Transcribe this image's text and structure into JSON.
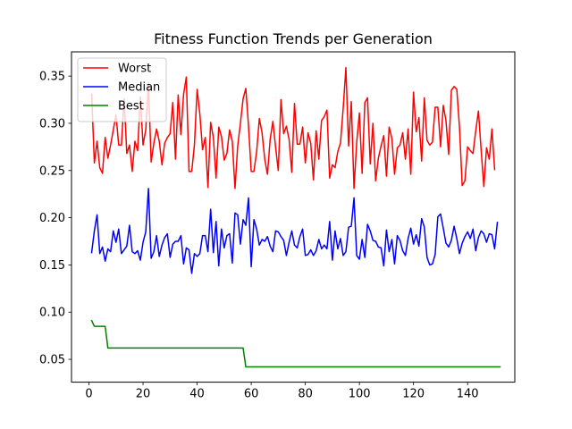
{
  "chart_data": {
    "type": "line",
    "title": "Fitness Function Trends per Generation",
    "xlabel": "",
    "ylabel": "",
    "xlim": [
      -6.45,
      157.45
    ],
    "ylim": [
      0.0258,
      0.3757
    ],
    "x_ticks": [
      0,
      20,
      40,
      60,
      80,
      100,
      120,
      140
    ],
    "y_ticks": [
      0.05,
      0.1,
      0.15,
      0.2,
      0.25,
      0.3,
      0.35
    ],
    "grid": false,
    "legend_position": "top-left",
    "x_start": 1,
    "series": [
      {
        "name": "Worst",
        "color": "#ff0000",
        "values": [
          0.331,
          0.258,
          0.281,
          0.253,
          0.247,
          0.285,
          0.263,
          0.277,
          0.293,
          0.309,
          0.277,
          0.277,
          0.326,
          0.268,
          0.277,
          0.249,
          0.281,
          0.271,
          0.328,
          0.277,
          0.293,
          0.343,
          0.259,
          0.279,
          0.294,
          0.281,
          0.256,
          0.279,
          0.285,
          0.289,
          0.322,
          0.262,
          0.33,
          0.288,
          0.331,
          0.349,
          0.249,
          0.249,
          0.277,
          0.336,
          0.31,
          0.272,
          0.285,
          0.232,
          0.301,
          0.285,
          0.242,
          0.296,
          0.286,
          0.261,
          0.268,
          0.293,
          0.281,
          0.231,
          0.276,
          0.3,
          0.326,
          0.337,
          0.297,
          0.249,
          0.249,
          0.27,
          0.305,
          0.29,
          0.262,
          0.246,
          0.283,
          0.302,
          0.275,
          0.25,
          0.325,
          0.289,
          0.297,
          0.283,
          0.248,
          0.321,
          0.278,
          0.278,
          0.296,
          0.258,
          0.29,
          0.279,
          0.24,
          0.292,
          0.262,
          0.303,
          0.307,
          0.314,
          0.242,
          0.256,
          0.253,
          0.27,
          0.279,
          0.316,
          0.359,
          0.276,
          0.323,
          0.231,
          0.28,
          0.311,
          0.247,
          0.322,
          0.327,
          0.257,
          0.3,
          0.239,
          0.263,
          0.276,
          0.287,
          0.244,
          0.296,
          0.284,
          0.246,
          0.274,
          0.277,
          0.29,
          0.262,
          0.294,
          0.246,
          0.333,
          0.291,
          0.306,
          0.26,
          0.327,
          0.282,
          0.277,
          0.28,
          0.317,
          0.317,
          0.275,
          0.319,
          0.303,
          0.267,
          0.335,
          0.339,
          0.336,
          0.296,
          0.234,
          0.239,
          0.275,
          0.271,
          0.268,
          0.292,
          0.313,
          0.272,
          0.233,
          0.274,
          0.262,
          0.294,
          0.251
        ]
      },
      {
        "name": "Median",
        "color": "#0000ff",
        "values": [
          0.163,
          0.186,
          0.203,
          0.162,
          0.169,
          0.154,
          0.167,
          0.164,
          0.186,
          0.174,
          0.188,
          0.162,
          0.166,
          0.17,
          0.192,
          0.164,
          0.162,
          0.165,
          0.155,
          0.174,
          0.185,
          0.231,
          0.157,
          0.164,
          0.181,
          0.159,
          0.171,
          0.179,
          0.183,
          0.158,
          0.172,
          0.175,
          0.175,
          0.181,
          0.151,
          0.168,
          0.166,
          0.141,
          0.162,
          0.159,
          0.162,
          0.181,
          0.181,
          0.164,
          0.209,
          0.163,
          0.196,
          0.149,
          0.188,
          0.168,
          0.181,
          0.183,
          0.152,
          0.205,
          0.203,
          0.172,
          0.198,
          0.192,
          0.221,
          0.148,
          0.198,
          0.188,
          0.171,
          0.177,
          0.175,
          0.18,
          0.17,
          0.164,
          0.186,
          0.185,
          0.18,
          0.176,
          0.16,
          0.174,
          0.186,
          0.171,
          0.168,
          0.18,
          0.188,
          0.16,
          0.161,
          0.166,
          0.16,
          0.165,
          0.177,
          0.167,
          0.171,
          0.167,
          0.196,
          0.155,
          0.186,
          0.167,
          0.178,
          0.16,
          0.164,
          0.19,
          0.191,
          0.221,
          0.16,
          0.156,
          0.177,
          0.158,
          0.193,
          0.186,
          0.176,
          0.175,
          0.169,
          0.168,
          0.149,
          0.187,
          0.164,
          0.177,
          0.151,
          0.181,
          0.176,
          0.165,
          0.16,
          0.178,
          0.189,
          0.172,
          0.182,
          0.17,
          0.199,
          0.19,
          0.158,
          0.15,
          0.151,
          0.161,
          0.201,
          0.204,
          0.189,
          0.173,
          0.169,
          0.176,
          0.191,
          0.178,
          0.162,
          0.173,
          0.18,
          0.185,
          0.178,
          0.188,
          0.165,
          0.179,
          0.186,
          0.183,
          0.174,
          0.183,
          0.182,
          0.167,
          0.195
        ]
      },
      {
        "name": "Best",
        "color": "#008000",
        "values": [
          0.091,
          0.085,
          0.085,
          0.085,
          0.085,
          0.085,
          0.062,
          0.062,
          0.062,
          0.062,
          0.062,
          0.062,
          0.062,
          0.062,
          0.062,
          0.062,
          0.062,
          0.062,
          0.062,
          0.062,
          0.062,
          0.062,
          0.062,
          0.062,
          0.062,
          0.062,
          0.062,
          0.062,
          0.062,
          0.062,
          0.062,
          0.062,
          0.062,
          0.062,
          0.062,
          0.062,
          0.062,
          0.062,
          0.062,
          0.062,
          0.062,
          0.062,
          0.062,
          0.062,
          0.062,
          0.062,
          0.062,
          0.062,
          0.062,
          0.062,
          0.062,
          0.062,
          0.062,
          0.062,
          0.062,
          0.062,
          0.062,
          0.042,
          0.042,
          0.042,
          0.042,
          0.042,
          0.042,
          0.042,
          0.042,
          0.042,
          0.042,
          0.042,
          0.042,
          0.042,
          0.042,
          0.042,
          0.042,
          0.042,
          0.042,
          0.042,
          0.042,
          0.042,
          0.042,
          0.042,
          0.042,
          0.042,
          0.042,
          0.042,
          0.042,
          0.042,
          0.042,
          0.042,
          0.042,
          0.042,
          0.042,
          0.042,
          0.042,
          0.042,
          0.042,
          0.042,
          0.042,
          0.042,
          0.042,
          0.042,
          0.042,
          0.042,
          0.042,
          0.042,
          0.042,
          0.042,
          0.042,
          0.042,
          0.042,
          0.042,
          0.042,
          0.042,
          0.042,
          0.042,
          0.042,
          0.042,
          0.042,
          0.042,
          0.042,
          0.042,
          0.042,
          0.042,
          0.042,
          0.042,
          0.042,
          0.042,
          0.042,
          0.042,
          0.042,
          0.042,
          0.042,
          0.042,
          0.042,
          0.042,
          0.042,
          0.042,
          0.042,
          0.042,
          0.042,
          0.042,
          0.042,
          0.042,
          0.042,
          0.042,
          0.042,
          0.042,
          0.042,
          0.042,
          0.042,
          0.042,
          0.042,
          0.042
        ]
      }
    ]
  }
}
